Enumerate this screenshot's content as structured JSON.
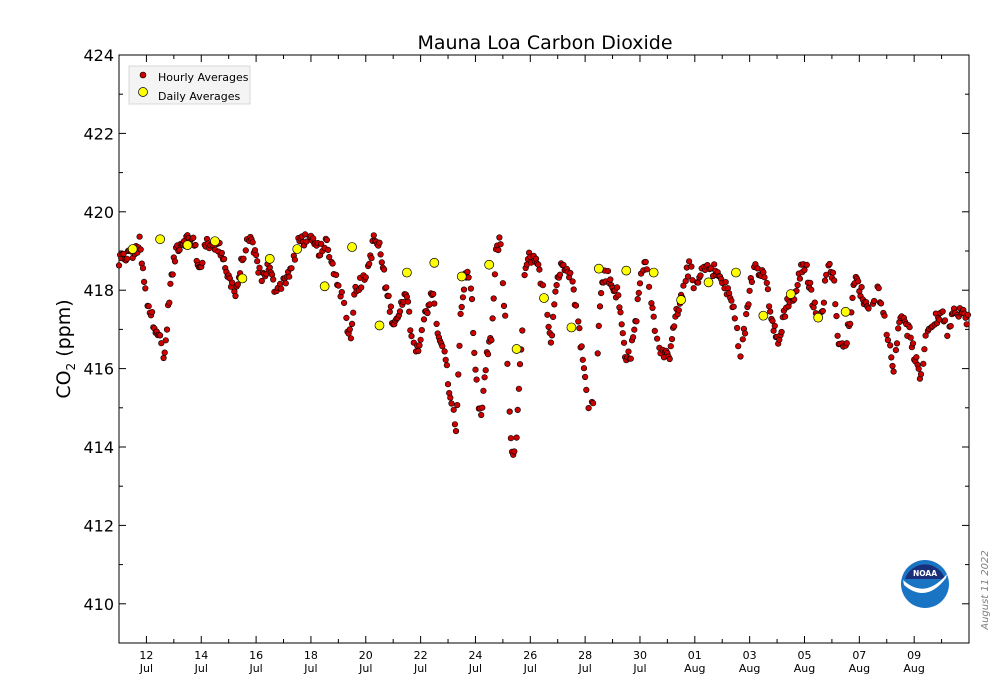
{
  "chart_data": {
    "type": "scatter",
    "title": "Mauna Loa Carbon Dioxide",
    "ylabel": {
      "main": "CO",
      "sub": "2",
      "unit": "(ppm)"
    },
    "ylim": [
      409,
      424
    ],
    "yticks": [
      410,
      412,
      414,
      416,
      418,
      420,
      422,
      424
    ],
    "xlim_day": [
      0,
      31
    ],
    "xticks": [
      {
        "day": 1,
        "date": "12",
        "month": "Jul"
      },
      {
        "day": 3,
        "date": "14",
        "month": "Jul"
      },
      {
        "day": 5,
        "date": "16",
        "month": "Jul"
      },
      {
        "day": 7,
        "date": "18",
        "month": "Jul"
      },
      {
        "day": 9,
        "date": "20",
        "month": "Jul"
      },
      {
        "day": 11,
        "date": "22",
        "month": "Jul"
      },
      {
        "day": 13,
        "date": "24",
        "month": "Jul"
      },
      {
        "day": 15,
        "date": "26",
        "month": "Jul"
      },
      {
        "day": 17,
        "date": "28",
        "month": "Jul"
      },
      {
        "day": 19,
        "date": "30",
        "month": "Jul"
      },
      {
        "day": 21,
        "date": "01",
        "month": "Aug"
      },
      {
        "day": 23,
        "date": "03",
        "month": "Aug"
      },
      {
        "day": 25,
        "date": "05",
        "month": "Aug"
      },
      {
        "day": 27,
        "date": "07",
        "month": "Aug"
      },
      {
        "day": 29,
        "date": "09",
        "month": "Aug"
      }
    ],
    "legend": {
      "placement": "top-left",
      "hourly_label": "Hourly Averages",
      "daily_label": "Daily Averages"
    },
    "series": [
      {
        "name": "Hourly Averages",
        "color": "#cc0000",
        "anchors": [
          [
            0.0,
            418.7
          ],
          [
            0.3,
            418.9
          ],
          [
            0.55,
            418.9
          ],
          [
            0.75,
            419.2
          ],
          [
            0.95,
            418.0
          ],
          [
            1.2,
            417.3
          ],
          [
            1.45,
            416.9
          ],
          [
            1.65,
            416.2
          ],
          [
            1.85,
            418.0
          ],
          [
            2.1,
            419.1
          ],
          [
            2.4,
            419.3
          ],
          [
            2.7,
            419.3
          ],
          [
            2.95,
            418.5
          ],
          [
            3.2,
            419.2
          ],
          [
            3.45,
            419.2
          ],
          [
            3.75,
            419.0
          ],
          [
            4.0,
            418.3
          ],
          [
            4.25,
            417.9
          ],
          [
            4.5,
            418.8
          ],
          [
            4.75,
            419.3
          ],
          [
            5.0,
            418.8
          ],
          [
            5.2,
            418.3
          ],
          [
            5.45,
            418.6
          ],
          [
            5.7,
            418.0
          ],
          [
            6.0,
            418.2
          ],
          [
            6.3,
            418.6
          ],
          [
            6.6,
            419.3
          ],
          [
            6.9,
            419.3
          ],
          [
            7.15,
            419.1
          ],
          [
            7.4,
            419.0
          ],
          [
            7.6,
            419.2
          ],
          [
            7.8,
            418.6
          ],
          [
            8.05,
            418.1
          ],
          [
            8.3,
            417.2
          ],
          [
            8.45,
            416.8
          ],
          [
            8.6,
            418.1
          ],
          [
            8.9,
            418.2
          ],
          [
            9.1,
            418.6
          ],
          [
            9.3,
            419.3
          ],
          [
            9.5,
            419.1
          ],
          [
            9.75,
            418.0
          ],
          [
            10.0,
            417.2
          ],
          [
            10.25,
            417.4
          ],
          [
            10.45,
            418.1
          ],
          [
            10.65,
            417.0
          ],
          [
            10.85,
            416.4
          ],
          [
            11.15,
            417.4
          ],
          [
            11.45,
            417.9
          ],
          [
            11.7,
            416.6
          ],
          [
            11.9,
            416.3
          ],
          [
            12.1,
            415.1
          ],
          [
            12.3,
            414.5
          ],
          [
            12.45,
            417.3
          ],
          [
            12.65,
            418.5
          ],
          [
            12.85,
            418.0
          ],
          [
            13.0,
            415.8
          ],
          [
            13.2,
            414.7
          ],
          [
            13.4,
            416.2
          ],
          [
            13.6,
            416.9
          ],
          [
            13.75,
            418.9
          ],
          [
            13.9,
            419.4
          ],
          [
            14.1,
            417.0
          ],
          [
            14.3,
            414.0
          ],
          [
            14.45,
            413.7
          ],
          [
            14.6,
            415.6
          ],
          [
            14.8,
            418.4
          ],
          [
            14.95,
            418.8
          ],
          [
            15.15,
            418.8
          ],
          [
            15.35,
            418.4
          ],
          [
            15.55,
            417.9
          ],
          [
            15.75,
            416.7
          ],
          [
            15.95,
            418.2
          ],
          [
            16.15,
            418.6
          ],
          [
            16.35,
            418.7
          ],
          [
            16.55,
            418.1
          ],
          [
            16.75,
            417.2
          ],
          [
            16.95,
            416.0
          ],
          [
            17.1,
            415.1
          ],
          [
            17.3,
            415.3
          ],
          [
            17.45,
            416.3
          ],
          [
            17.6,
            418.3
          ],
          [
            17.8,
            418.4
          ],
          [
            18.0,
            418.1
          ],
          [
            18.2,
            417.9
          ],
          [
            18.45,
            416.4
          ],
          [
            18.65,
            416.3
          ],
          [
            18.85,
            417.2
          ],
          [
            19.05,
            418.6
          ],
          [
            19.25,
            418.7
          ],
          [
            19.45,
            417.5
          ],
          [
            19.6,
            416.8
          ],
          [
            19.85,
            416.4
          ],
          [
            20.05,
            416.2
          ],
          [
            20.2,
            417.1
          ],
          [
            20.45,
            417.6
          ],
          [
            20.65,
            418.3
          ],
          [
            20.85,
            418.7
          ],
          [
            21.0,
            417.8
          ],
          [
            21.25,
            418.5
          ],
          [
            21.5,
            418.6
          ],
          [
            21.75,
            418.5
          ],
          [
            22.0,
            418.2
          ],
          [
            22.25,
            417.9
          ],
          [
            22.45,
            417.4
          ],
          [
            22.65,
            416.3
          ],
          [
            22.85,
            417.1
          ],
          [
            23.05,
            418.3
          ],
          [
            23.25,
            418.6
          ],
          [
            23.45,
            418.5
          ],
          [
            23.65,
            418.0
          ],
          [
            23.85,
            417.1
          ],
          [
            24.05,
            416.6
          ],
          [
            24.25,
            417.4
          ],
          [
            24.45,
            417.8
          ],
          [
            24.65,
            417.8
          ],
          [
            24.85,
            418.5
          ],
          [
            25.05,
            418.6
          ],
          [
            25.25,
            417.9
          ],
          [
            25.45,
            417.3
          ],
          [
            25.65,
            417.5
          ],
          [
            25.85,
            418.7
          ],
          [
            26.05,
            418.4
          ],
          [
            26.25,
            416.6
          ],
          [
            26.45,
            416.5
          ],
          [
            26.65,
            417.2
          ],
          [
            26.85,
            418.3
          ],
          [
            27.05,
            418.0
          ],
          [
            27.25,
            417.6
          ],
          [
            27.45,
            417.7
          ],
          [
            27.65,
            418.0
          ],
          [
            27.85,
            417.7
          ],
          [
            28.05,
            416.8
          ],
          [
            28.25,
            415.9
          ],
          [
            28.45,
            417.3
          ],
          [
            28.65,
            417.1
          ],
          [
            28.85,
            416.9
          ],
          [
            29.05,
            416.2
          ],
          [
            29.25,
            415.7
          ],
          [
            29.45,
            417.0
          ],
          [
            29.65,
            417.1
          ],
          [
            29.85,
            417.3
          ],
          [
            30.05,
            417.3
          ],
          [
            30.25,
            416.9
          ],
          [
            30.45,
            417.4
          ],
          [
            30.65,
            417.5
          ],
          [
            30.85,
            417.3
          ],
          [
            31.0,
            417.3
          ]
        ]
      },
      {
        "name": "Daily Averages",
        "color": "#ffff00",
        "points": [
          [
            0.5,
            419.05
          ],
          [
            1.5,
            419.3
          ],
          [
            2.5,
            419.15
          ],
          [
            3.5,
            419.25
          ],
          [
            4.5,
            418.3
          ],
          [
            5.5,
            418.8
          ],
          [
            6.5,
            419.05
          ],
          [
            7.5,
            418.1
          ],
          [
            8.5,
            419.1
          ],
          [
            9.5,
            417.1
          ],
          [
            10.5,
            418.45
          ],
          [
            11.5,
            418.7
          ],
          [
            12.5,
            418.35
          ],
          [
            13.5,
            418.65
          ],
          [
            14.5,
            416.5
          ],
          [
            15.5,
            417.8
          ],
          [
            16.5,
            417.05
          ],
          [
            17.5,
            418.55
          ],
          [
            18.5,
            418.5
          ],
          [
            19.5,
            418.45
          ],
          [
            20.5,
            417.75
          ],
          [
            21.5,
            418.2
          ],
          [
            22.5,
            418.45
          ],
          [
            23.5,
            417.35
          ],
          [
            24.5,
            417.9
          ],
          [
            25.5,
            417.3
          ],
          [
            26.5,
            417.45
          ]
        ]
      }
    ]
  },
  "side_note": "August 11 2022",
  "logo": {
    "text": "NOAA"
  }
}
